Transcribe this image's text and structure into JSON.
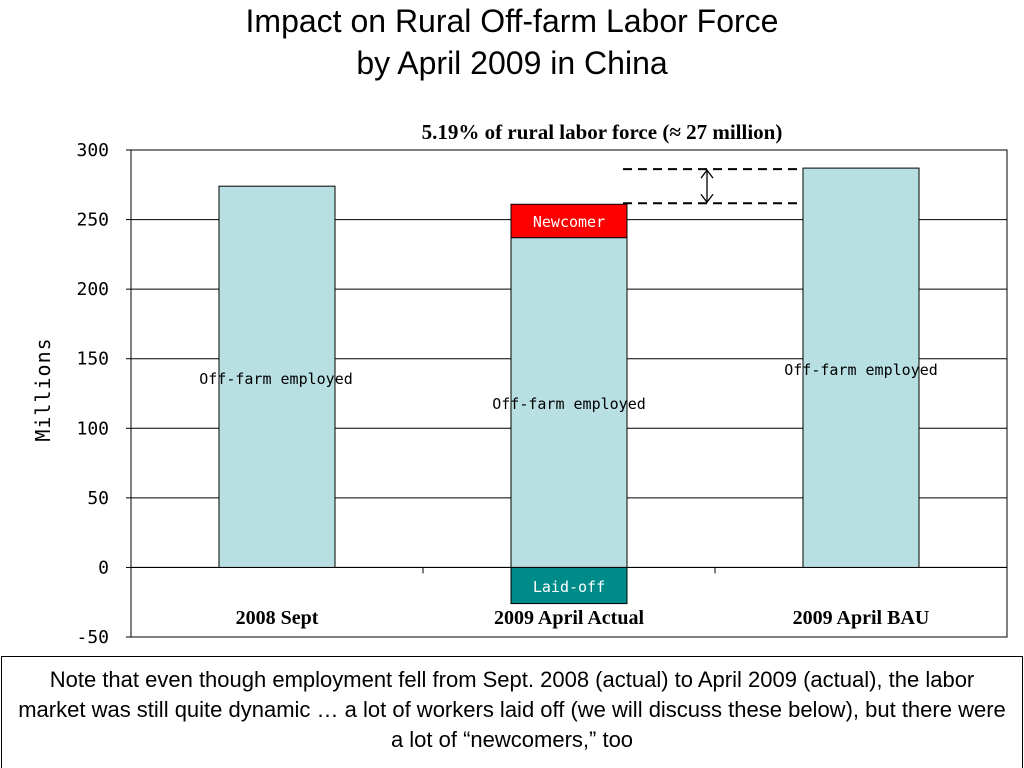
{
  "slide": {
    "title_line1": "Impact on Rural Off-farm Labor Force",
    "title_line2": "by April 2009 in China",
    "note": "Note that even though employment fell from Sept. 2008 (actual) to April 2009 (actual), the labor market was still quite dynamic … a lot of workers laid off (we will discuss these below), but there were a lot of “newcomers,” too"
  },
  "chart_data": {
    "type": "bar",
    "stacked": true,
    "title": "",
    "ylabel": "Millions",
    "xlabel": "",
    "ylim": [
      -50,
      300
    ],
    "yticks": [
      -50,
      0,
      50,
      100,
      150,
      200,
      250,
      300
    ],
    "grid": true,
    "categories": [
      "2008 Sept",
      "2009 April Actual",
      "2009 April BAU"
    ],
    "series": [
      {
        "name": "Off-farm employed",
        "color": "#b8dfe2",
        "values": [
          274,
          237,
          287
        ]
      },
      {
        "name": "Newcomer",
        "color": "#ff0000",
        "values": [
          0,
          24,
          0
        ]
      },
      {
        "name": "Laid-off",
        "color": "#008b8b",
        "values": [
          0,
          -26,
          0
        ]
      }
    ],
    "segment_labels": [
      {
        "text": "Off-farm employed",
        "category": 0
      },
      {
        "text": "Off-farm employed",
        "category": 1
      },
      {
        "text": "Newcomer",
        "category": 1
      },
      {
        "text": "Laid-off",
        "category": 1
      },
      {
        "text": "Off-farm employed",
        "category": 2
      }
    ],
    "annotation": {
      "text": "5.19% of rural labor force (≈ 27 million)",
      "from_value": 261,
      "to_value": 287
    }
  }
}
